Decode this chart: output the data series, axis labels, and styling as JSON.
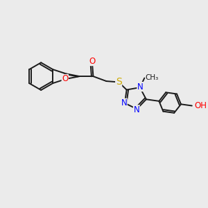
{
  "bg_color": "#ebebeb",
  "line_color": "#1a1a1a",
  "bond_width": 1.4,
  "figsize": [
    3.0,
    3.0
  ],
  "dpi": 100,
  "atom_colors": {
    "O": "#ff0000",
    "N": "#0000ff",
    "S": "#ccaa00",
    "C": "#1a1a1a",
    "H": "#1a1a1a"
  },
  "font_size": 8.5,
  "xlim": [
    0,
    10
  ],
  "ylim": [
    0,
    10
  ]
}
